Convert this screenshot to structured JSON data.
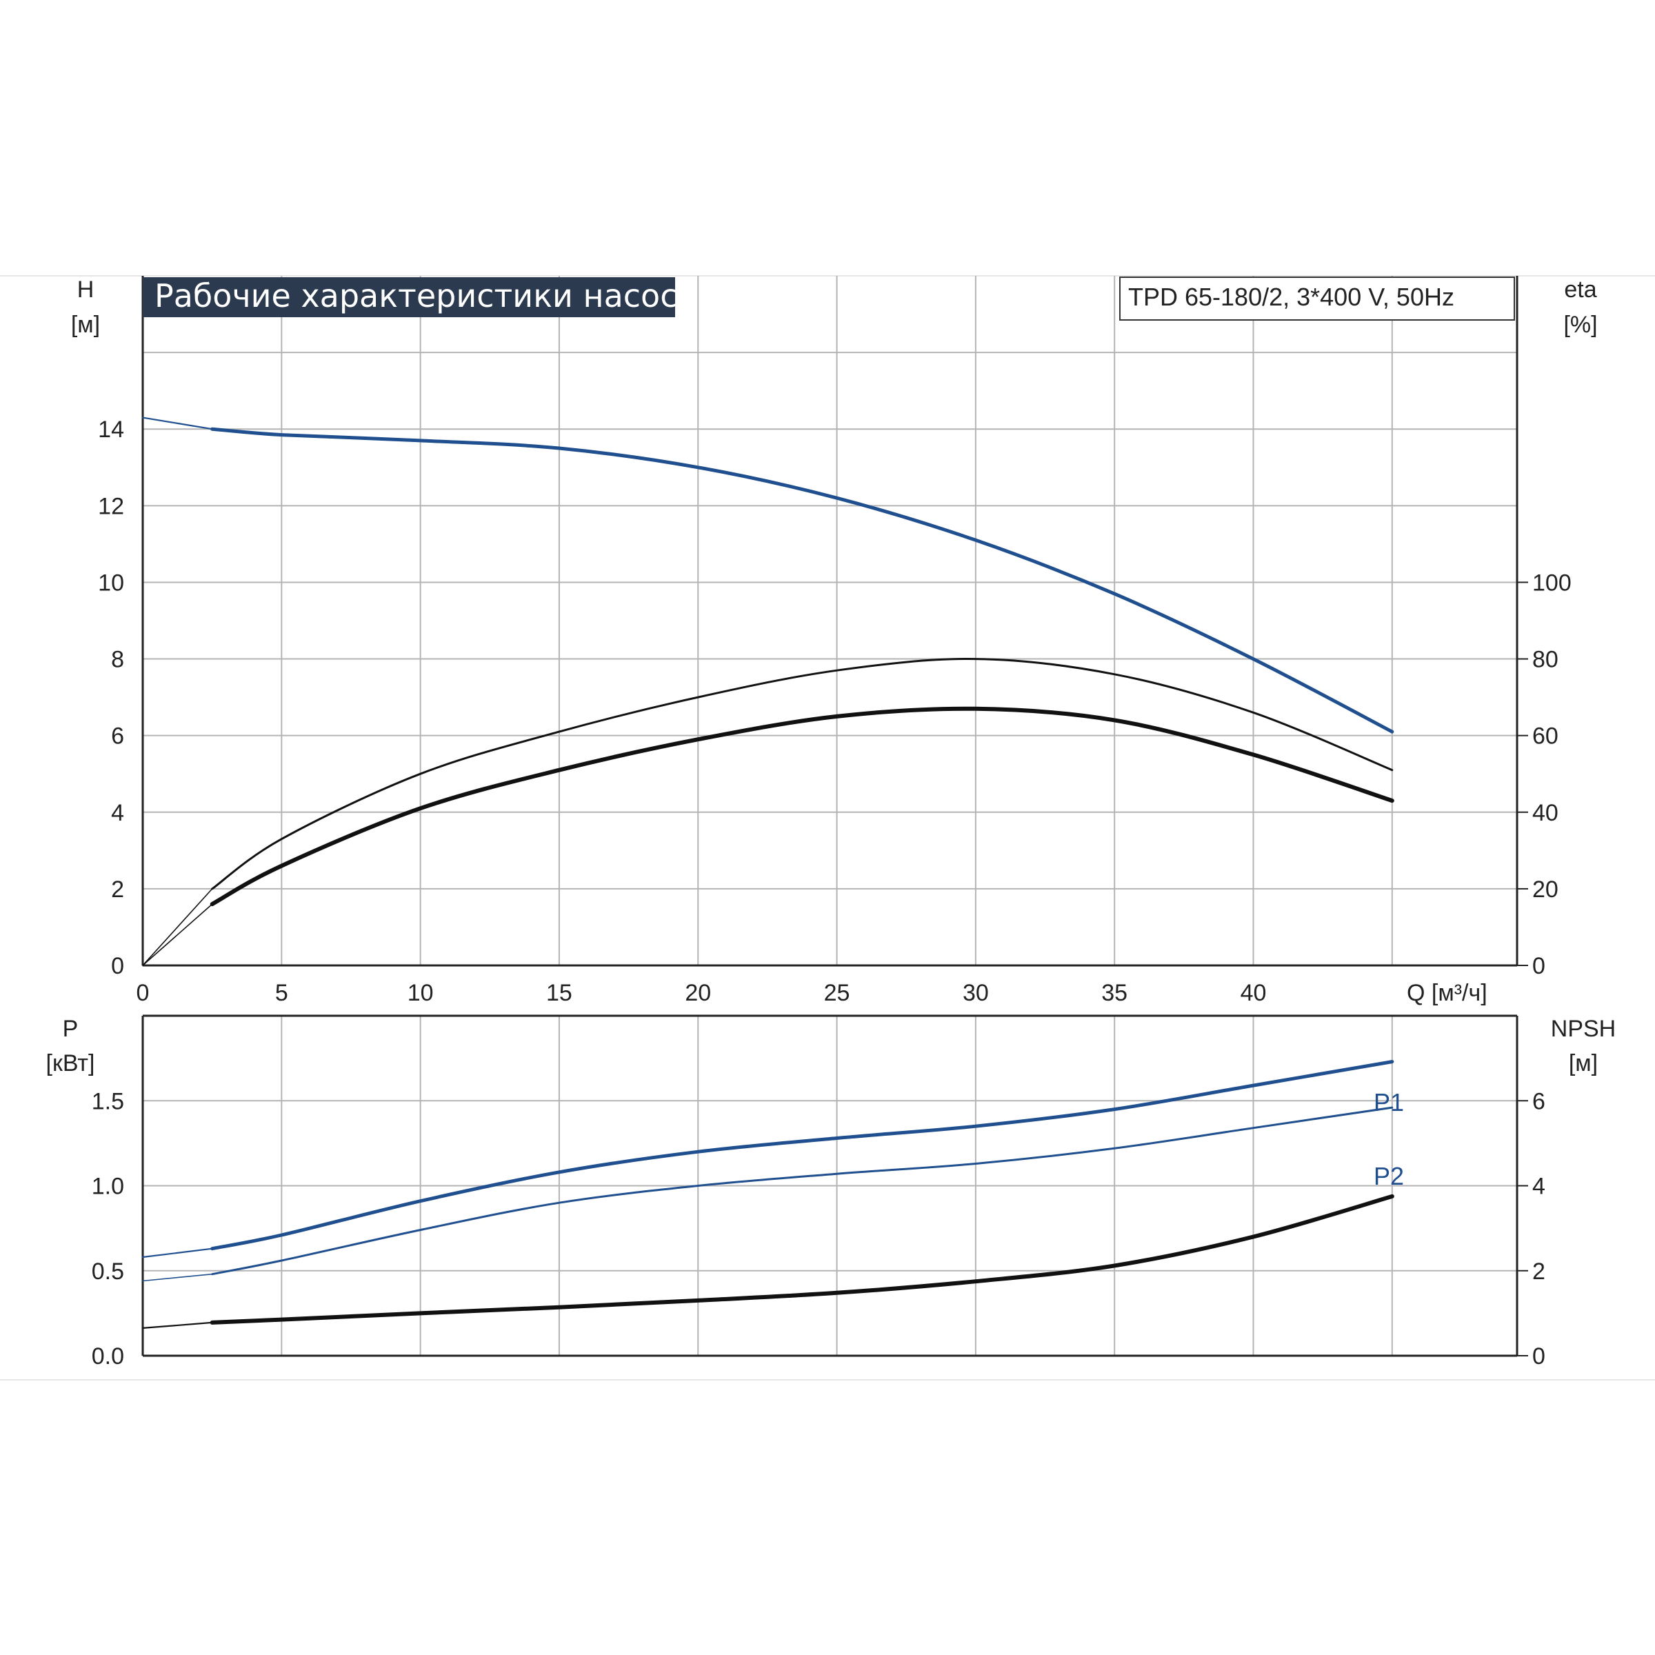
{
  "title": "Рабочие характеристики насоса",
  "model": "TPD 65-180/2, 3*400 V, 50Hz",
  "colors": {
    "blue": "#1f4f8e",
    "black": "#111111",
    "title_bg": "#2b3a4e",
    "grid": "#b4b4b4"
  },
  "chart_data": [
    {
      "type": "line",
      "panel": "top",
      "x_label": "Q [м³/ч]",
      "x_ticks": [
        "0",
        "5",
        "10",
        "15",
        "20",
        "25",
        "30",
        "35",
        "40"
      ],
      "xlim": [
        0,
        49.5
      ],
      "grid": true,
      "y_left": {
        "label_line1": "H",
        "label_line2": "[м]",
        "ylim": [
          0,
          18
        ],
        "ticks": [
          "0",
          "2",
          "4",
          "6",
          "8",
          "10",
          "12",
          "14"
        ]
      },
      "y_right": {
        "label_line1": "eta",
        "label_line2": "[%]",
        "ylim": [
          0,
          180
        ],
        "ticks": [
          "0",
          "20",
          "40",
          "60",
          "80",
          "100"
        ]
      },
      "series": [
        {
          "key": "H",
          "axis": "left",
          "color": "#1f4f8e",
          "x": [
            0,
            2.5,
            5,
            10,
            15,
            20,
            25,
            30,
            35,
            40,
            45
          ],
          "y": [
            14.3,
            14.0,
            13.85,
            13.7,
            13.5,
            13.0,
            12.2,
            11.1,
            9.7,
            8.0,
            6.1
          ]
        },
        {
          "key": "eta_pump",
          "axis": "right",
          "color": "#111111",
          "x": [
            0,
            2.5,
            5,
            10,
            15,
            20,
            25,
            30,
            35,
            40,
            45
          ],
          "y": [
            0,
            20,
            33,
            50,
            61,
            70,
            77,
            80,
            76,
            66,
            51
          ]
        },
        {
          "key": "eta_total",
          "axis": "right",
          "color": "#111111",
          "x": [
            0,
            2.5,
            5,
            10,
            15,
            20,
            25,
            30,
            35,
            40,
            45
          ],
          "y": [
            0,
            16,
            26,
            41,
            51,
            59,
            65,
            67,
            64,
            55,
            43
          ]
        }
      ]
    },
    {
      "type": "line",
      "panel": "bottom",
      "xlim": [
        0,
        49.5
      ],
      "grid": true,
      "y_left": {
        "label_line1": "P",
        "label_line2": "[кВт]",
        "ylim": [
          0,
          2.0
        ],
        "ticks": [
          "0.0",
          "0.5",
          "1.0",
          "1.5"
        ]
      },
      "y_right": {
        "label_line1": "NPSH",
        "label_line2": "[м]",
        "ylim": [
          0,
          8
        ],
        "ticks": [
          "0",
          "2",
          "4",
          "6"
        ]
      },
      "series": [
        {
          "key": "P1",
          "name": "P1",
          "axis": "left",
          "color": "#1f4f8e",
          "x": [
            0,
            2.5,
            5,
            10,
            15,
            20,
            25,
            30,
            35,
            40,
            45
          ],
          "y": [
            0.58,
            0.63,
            0.71,
            0.91,
            1.08,
            1.2,
            1.28,
            1.35,
            1.45,
            1.59,
            1.73
          ]
        },
        {
          "key": "P2",
          "name": "P2",
          "axis": "left",
          "color": "#1f4f8e",
          "x": [
            0,
            2.5,
            5,
            10,
            15,
            20,
            25,
            30,
            35,
            40,
            45
          ],
          "y": [
            0.44,
            0.48,
            0.56,
            0.74,
            0.9,
            1.0,
            1.07,
            1.13,
            1.22,
            1.34,
            1.46
          ]
        },
        {
          "key": "NPSH",
          "axis": "right",
          "color": "#111111",
          "x": [
            0,
            2.5,
            5,
            10,
            15,
            20,
            25,
            30,
            35,
            40,
            45
          ],
          "y": [
            0.65,
            0.78,
            0.85,
            1.0,
            1.14,
            1.3,
            1.48,
            1.75,
            2.12,
            2.8,
            3.75
          ]
        }
      ]
    }
  ]
}
